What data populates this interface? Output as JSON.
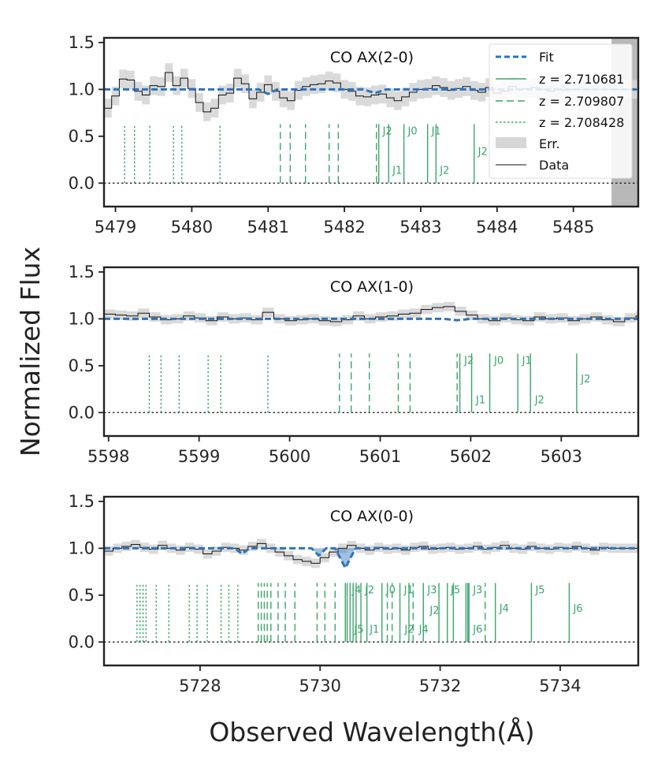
{
  "chart_data": {
    "type": "line",
    "ylabel": "Normalized Flux",
    "xlabel": "Observed Wavelength(Å)",
    "colors": {
      "fit": "#2d74b8",
      "lines": "#3aa66a",
      "error_band": "#d6d6d6",
      "data": "#111111",
      "masked": "#b8b8b8"
    },
    "legend": {
      "position": "top-right",
      "entries": [
        {
          "label": "Fit",
          "style": "fit"
        },
        {
          "label": "z = 2.710681",
          "style": "solid"
        },
        {
          "label": "z = 2.709807",
          "style": "dashed"
        },
        {
          "label": "z = 2.708428",
          "style": "dotted"
        },
        {
          "label": "Err.",
          "style": "patch"
        },
        {
          "label": "Data",
          "style": "thin"
        }
      ]
    },
    "panels": [
      {
        "id": "p1",
        "title": "CO AX(2-0)",
        "xlim": [
          5478.85,
          5485.85
        ],
        "ylim": [
          -0.25,
          1.55
        ],
        "xticks": [
          5479,
          5480,
          5481,
          5482,
          5483,
          5484,
          5485
        ],
        "xtick_labels": [
          "5479",
          "5480",
          "5481",
          "5482",
          "5483",
          "5484",
          "5485"
        ],
        "yticks": [
          0.0,
          0.5,
          1.0,
          1.5
        ],
        "ytick_labels": [
          "0.0",
          "0.5",
          "1.0",
          "1.5"
        ],
        "masked_from": 5485.5,
        "step": 0.1,
        "data_x0": 5478.85,
        "data_y": [
          0.8,
          0.93,
          1.11,
          1.1,
          0.98,
          0.94,
          1.04,
          1.03,
          1.18,
          1.04,
          1.12,
          1.01,
          0.86,
          0.76,
          0.8,
          0.94,
          0.96,
          1.12,
          1.06,
          0.9,
          0.97,
          1.05,
          0.98,
          0.91,
          0.88,
          0.99,
          1.03,
          1.05,
          1.06,
          1.09,
          1.07,
          1.0,
          0.98,
          0.93,
          0.92,
          0.94,
          0.95,
          0.91,
          0.88,
          0.92,
          0.97,
          1.0,
          1.01,
          1.04,
          1.02,
          0.99,
          1.01,
          1.03,
          0.99,
          0.97,
          1.02,
          0.96,
          0.98,
          1.03,
          1.0,
          1.01,
          1.02,
          1.0,
          0.98,
          1.01,
          0.99,
          1.0,
          1.0,
          1.0,
          1.0,
          1.0,
          1.0,
          1.0,
          1.0,
          1.0,
          1.0
        ],
        "err": 0.1,
        "fit_dips": [
          {
            "x": 5481.0,
            "depth": 0.05,
            "width": 0.12
          },
          {
            "x": 5482.4,
            "depth": 0.04,
            "width": 0.15
          }
        ],
        "fit_fill": [],
        "lines": [
          {
            "x": 5479.12,
            "style": "dotted"
          },
          {
            "x": 5479.25,
            "style": "dotted"
          },
          {
            "x": 5479.45,
            "style": "dotted"
          },
          {
            "x": 5479.76,
            "style": "dotted"
          },
          {
            "x": 5479.87,
            "style": "dotted"
          },
          {
            "x": 5480.37,
            "style": "dotted"
          },
          {
            "x": 5481.16,
            "style": "dashed"
          },
          {
            "x": 5481.29,
            "style": "dashed"
          },
          {
            "x": 5481.49,
            "style": "dashed"
          },
          {
            "x": 5481.8,
            "style": "dashed"
          },
          {
            "x": 5481.92,
            "style": "dashed"
          },
          {
            "x": 5482.42,
            "style": "dashed"
          },
          {
            "x": 5482.45,
            "style": "solid"
          },
          {
            "x": 5482.58,
            "style": "solid"
          },
          {
            "x": 5482.78,
            "style": "solid"
          },
          {
            "x": 5483.09,
            "style": "solid"
          },
          {
            "x": 5483.2,
            "style": "solid"
          },
          {
            "x": 5483.7,
            "style": "solid"
          }
        ],
        "labels": [
          {
            "x": 5482.48,
            "y": 0.52,
            "text": "J2"
          },
          {
            "x": 5482.61,
            "y": 0.1,
            "text": "J1"
          },
          {
            "x": 5482.81,
            "y": 0.52,
            "text": "J0"
          },
          {
            "x": 5483.12,
            "y": 0.52,
            "text": "J1"
          },
          {
            "x": 5483.23,
            "y": 0.1,
            "text": "J2"
          },
          {
            "x": 5483.73,
            "y": 0.3,
            "text": "J2"
          }
        ]
      },
      {
        "id": "p2",
        "title": "CO AX(1-0)",
        "xlim": [
          5597.95,
          5603.85
        ],
        "ylim": [
          -0.25,
          1.55
        ],
        "xticks": [
          5598,
          5599,
          5600,
          5601,
          5602,
          5603
        ],
        "xtick_labels": [
          "5598",
          "5599",
          "5600",
          "5601",
          "5602",
          "5603"
        ],
        "yticks": [
          0.0,
          0.5,
          1.0,
          1.5
        ],
        "ytick_labels": [
          "0.0",
          "0.5",
          "1.0",
          "1.5"
        ],
        "step": 0.125,
        "data_x0": 5597.95,
        "data_y": [
          1.05,
          1.04,
          1.03,
          1.06,
          1.02,
          0.99,
          1.0,
          1.03,
          1.01,
          0.98,
          1.02,
          1.0,
          1.01,
          0.99,
          1.07,
          1.0,
          0.98,
          0.99,
          1.0,
          0.98,
          0.97,
          0.99,
          1.03,
          1.0,
          1.02,
          1.03,
          1.05,
          1.06,
          1.1,
          1.12,
          1.13,
          1.08,
          1.04,
          1.0,
          0.98,
          1.01,
          0.99,
          0.98,
          1.02,
          1.0,
          1.01,
          0.98,
          1.0,
          1.02,
          0.99,
          0.97,
          1.01,
          1.03,
          1.0
        ],
        "err": 0.05,
        "fit_dips": [
          {
            "x": 5601.85,
            "depth": 0.015,
            "width": 0.15
          }
        ],
        "fit_fill": [],
        "lines": [
          {
            "x": 5598.45,
            "style": "dotted"
          },
          {
            "x": 5598.58,
            "style": "dotted"
          },
          {
            "x": 5598.78,
            "style": "dotted"
          },
          {
            "x": 5599.1,
            "style": "dotted"
          },
          {
            "x": 5599.24,
            "style": "dotted"
          },
          {
            "x": 5599.76,
            "style": "dotted"
          },
          {
            "x": 5600.55,
            "style": "dashed"
          },
          {
            "x": 5600.68,
            "style": "dashed"
          },
          {
            "x": 5600.88,
            "style": "dashed"
          },
          {
            "x": 5601.2,
            "style": "dashed"
          },
          {
            "x": 5601.33,
            "style": "dashed"
          },
          {
            "x": 5601.85,
            "style": "dashed"
          },
          {
            "x": 5601.88,
            "style": "solid"
          },
          {
            "x": 5602.01,
            "style": "solid"
          },
          {
            "x": 5602.21,
            "style": "solid"
          },
          {
            "x": 5602.52,
            "style": "solid"
          },
          {
            "x": 5602.66,
            "style": "solid"
          },
          {
            "x": 5603.17,
            "style": "solid"
          }
        ],
        "labels": [
          {
            "x": 5601.91,
            "y": 0.52,
            "text": "J2"
          },
          {
            "x": 5602.04,
            "y": 0.1,
            "text": "J1"
          },
          {
            "x": 5602.24,
            "y": 0.52,
            "text": "J0"
          },
          {
            "x": 5602.55,
            "y": 0.52,
            "text": "J1"
          },
          {
            "x": 5602.69,
            "y": 0.1,
            "text": "J2"
          },
          {
            "x": 5603.2,
            "y": 0.32,
            "text": "J2"
          }
        ]
      },
      {
        "id": "p3",
        "title": "CO AX(0-0)",
        "xlim": [
          5726.4,
          5735.3
        ],
        "ylim": [
          -0.25,
          1.55
        ],
        "xticks": [
          5728,
          5730,
          5732,
          5734
        ],
        "xtick_labels": [
          "5728",
          "5730",
          "5732",
          "5734"
        ],
        "yticks": [
          0.0,
          0.5,
          1.0,
          1.5
        ],
        "ytick_labels": [
          "0.0",
          "0.5",
          "1.0",
          "1.5"
        ],
        "step": 0.15,
        "data_x0": 5726.4,
        "data_y": [
          0.97,
          1.0,
          1.02,
          1.04,
          1.01,
          0.99,
          1.03,
          1.0,
          0.98,
          1.01,
          0.99,
          0.94,
          0.97,
          1.01,
          1.0,
          0.98,
          1.02,
          1.05,
          1.0,
          0.96,
          0.92,
          0.88,
          0.86,
          0.84,
          0.9,
          0.96,
          1.0,
          1.03,
          1.0,
          0.98,
          1.01,
          0.99,
          1.0,
          0.98,
          1.01,
          1.02,
          0.99,
          1.0,
          1.01,
          0.99,
          1.0,
          1.02,
          0.99,
          1.01,
          1.03,
          1.0,
          0.99,
          1.02,
          1.0,
          0.99,
          1.01,
          1.0,
          1.02,
          1.0,
          0.98,
          1.01,
          1.0,
          1.0,
          1.0,
          1.0
        ],
        "err": 0.05,
        "fit_dips": [
          {
            "x": 5728.7,
            "depth": 0.06,
            "width": 0.12
          },
          {
            "x": 5729.98,
            "depth": 0.08,
            "width": 0.12
          },
          {
            "x": 5730.42,
            "depth": 0.21,
            "width": 0.17
          }
        ],
        "fit_fill": [
          5729.9,
          5730.85
        ],
        "lines": [
          {
            "x": 5726.95,
            "style": "dotted"
          },
          {
            "x": 5727.0,
            "style": "dotted"
          },
          {
            "x": 5727.05,
            "style": "dotted"
          },
          {
            "x": 5727.1,
            "style": "dotted"
          },
          {
            "x": 5727.27,
            "style": "dotted"
          },
          {
            "x": 5727.48,
            "style": "dotted"
          },
          {
            "x": 5727.82,
            "style": "dotted"
          },
          {
            "x": 5727.95,
            "style": "dotted"
          },
          {
            "x": 5728.12,
            "style": "dotted"
          },
          {
            "x": 5728.35,
            "style": "dotted"
          },
          {
            "x": 5728.48,
            "style": "dotted"
          },
          {
            "x": 5728.63,
            "style": "dotted"
          },
          {
            "x": 5728.97,
            "style": "dashed"
          },
          {
            "x": 5729.02,
            "style": "dashed"
          },
          {
            "x": 5729.07,
            "style": "dashed"
          },
          {
            "x": 5729.12,
            "style": "dashed"
          },
          {
            "x": 5729.18,
            "style": "dashed"
          },
          {
            "x": 5729.3,
            "style": "dashed"
          },
          {
            "x": 5729.42,
            "style": "dashed"
          },
          {
            "x": 5729.58,
            "style": "dashed"
          },
          {
            "x": 5729.95,
            "style": "dashed"
          },
          {
            "x": 5730.08,
            "style": "dashed"
          },
          {
            "x": 5730.25,
            "style": "dashed"
          },
          {
            "x": 5730.42,
            "style": "solid"
          },
          {
            "x": 5730.45,
            "style": "solid"
          },
          {
            "x": 5730.5,
            "style": "solid"
          },
          {
            "x": 5730.55,
            "style": "solid"
          },
          {
            "x": 5730.6,
            "style": "solid"
          },
          {
            "x": 5730.68,
            "style": "solid"
          },
          {
            "x": 5730.78,
            "style": "solid"
          },
          {
            "x": 5731.12,
            "style": "dashed"
          },
          {
            "x": 5731.2,
            "style": "dashed"
          },
          {
            "x": 5731.55,
            "style": "dashed"
          },
          {
            "x": 5731.03,
            "style": "solid"
          },
          {
            "x": 5731.33,
            "style": "solid"
          },
          {
            "x": 5731.48,
            "style": "solid"
          },
          {
            "x": 5731.72,
            "style": "solid"
          },
          {
            "x": 5731.98,
            "style": "solid"
          },
          {
            "x": 5732.12,
            "style": "solid"
          },
          {
            "x": 5732.22,
            "style": "solid"
          },
          {
            "x": 5732.43,
            "style": "solid"
          },
          {
            "x": 5732.46,
            "style": "solid"
          },
          {
            "x": 5732.48,
            "style": "solid"
          },
          {
            "x": 5732.75,
            "style": "dashed"
          },
          {
            "x": 5732.92,
            "style": "solid"
          },
          {
            "x": 5733.52,
            "style": "solid"
          },
          {
            "x": 5734.15,
            "style": "solid"
          }
        ],
        "labels": [
          {
            "x": 5730.5,
            "y": 0.52,
            "text": "J4"
          },
          {
            "x": 5730.54,
            "y": 0.1,
            "text": "J5"
          },
          {
            "x": 5730.72,
            "y": 0.52,
            "text": "J2"
          },
          {
            "x": 5730.8,
            "y": 0.1,
            "text": "J1"
          },
          {
            "x": 5731.07,
            "y": 0.52,
            "text": "J0"
          },
          {
            "x": 5731.37,
            "y": 0.52,
            "text": "J1"
          },
          {
            "x": 5731.38,
            "y": 0.1,
            "text": "J2"
          },
          {
            "x": 5731.76,
            "y": 0.52,
            "text": "J3"
          },
          {
            "x": 5731.8,
            "y": 0.3,
            "text": "J2"
          },
          {
            "x": 5731.62,
            "y": 0.1,
            "text": "J4"
          },
          {
            "x": 5732.15,
            "y": 0.52,
            "text": "J5"
          },
          {
            "x": 5732.52,
            "y": 0.52,
            "text": "J3"
          },
          {
            "x": 5732.52,
            "y": 0.1,
            "text": "J6"
          },
          {
            "x": 5732.96,
            "y": 0.32,
            "text": "J4"
          },
          {
            "x": 5733.56,
            "y": 0.52,
            "text": "J5"
          },
          {
            "x": 5734.19,
            "y": 0.32,
            "text": "J6"
          }
        ]
      }
    ]
  }
}
